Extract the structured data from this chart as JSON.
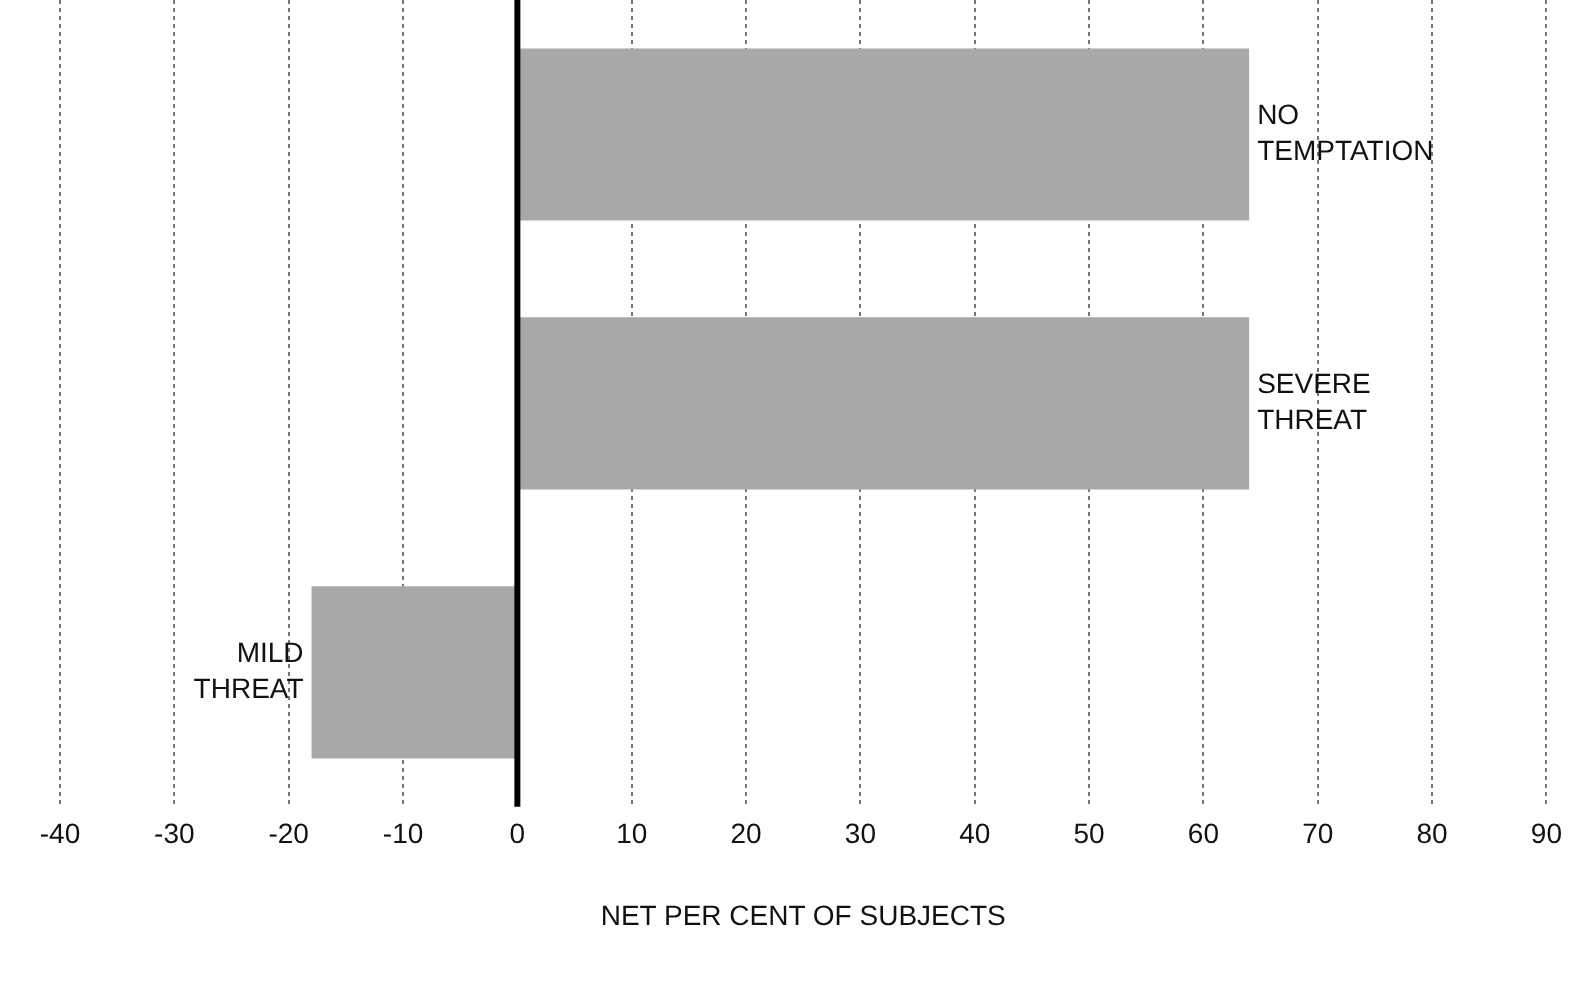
{
  "chart_data": {
    "type": "bar",
    "orientation": "horizontal",
    "xlabel": "NET PER CENT OF SUBJECTS",
    "categories": [
      "NO TEMPTATION",
      "SEVERE THREAT",
      "MILD THREAT"
    ],
    "values": [
      64,
      64,
      -18
    ],
    "color": "#a8a8a8",
    "xlim": [
      -40,
      90
    ],
    "xticks": [
      -40,
      -30,
      -20,
      -10,
      0,
      10,
      20,
      30,
      40,
      50,
      60,
      70,
      80,
      90
    ],
    "grid": "x",
    "tick_labels": "x",
    "ref_lines": [
      {
        "axis": "x",
        "value": 0,
        "color": "#000000"
      }
    ]
  }
}
